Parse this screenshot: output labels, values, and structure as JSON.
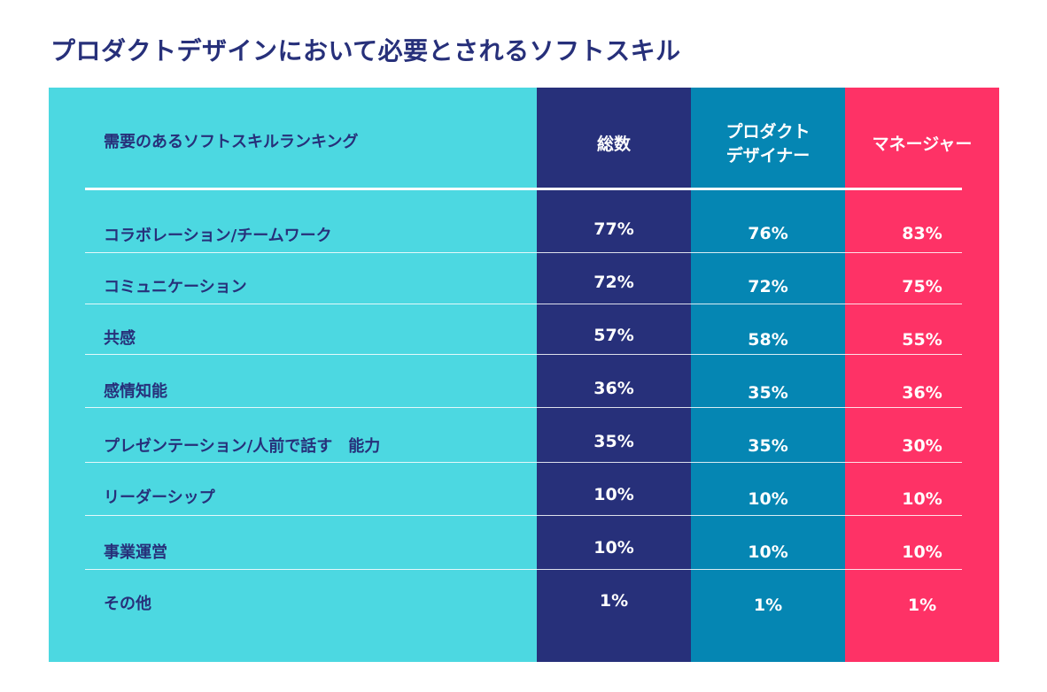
{
  "title": "プロダクトデザインにおいて必要とされるソフトスキル",
  "colors": {
    "label_panel": "#4cd8e1",
    "total_panel": "#27307a",
    "designer_panel": "#0586b3",
    "manager_panel": "#fe3266",
    "title_text": "#27307a"
  },
  "chart_data": {
    "type": "table",
    "row_header": "需要のあるソフトスキルランキング",
    "columns": [
      "総数",
      "プロダクト\nデザイナー",
      "マネージャー"
    ],
    "rows": [
      {
        "skill": "コラボレーション/チームワーク",
        "values": [
          "77%",
          "76%",
          "83%"
        ]
      },
      {
        "skill": "コミュニケーション",
        "values": [
          "72%",
          "72%",
          "75%"
        ]
      },
      {
        "skill": "共感",
        "values": [
          "57%",
          "58%",
          "55%"
        ]
      },
      {
        "skill": "感情知能",
        "values": [
          "36%",
          "35%",
          "36%"
        ]
      },
      {
        "skill": "プレゼンテーション/人前で話す　能力",
        "values": [
          "35%",
          "35%",
          "30%"
        ]
      },
      {
        "skill": "リーダーシップ",
        "values": [
          "10%",
          "10%",
          "10%"
        ]
      },
      {
        "skill": "事業運営",
        "values": [
          "10%",
          "10%",
          "10%"
        ]
      },
      {
        "skill": "その他",
        "values": [
          "1%",
          "1%",
          "1%"
        ]
      }
    ]
  }
}
